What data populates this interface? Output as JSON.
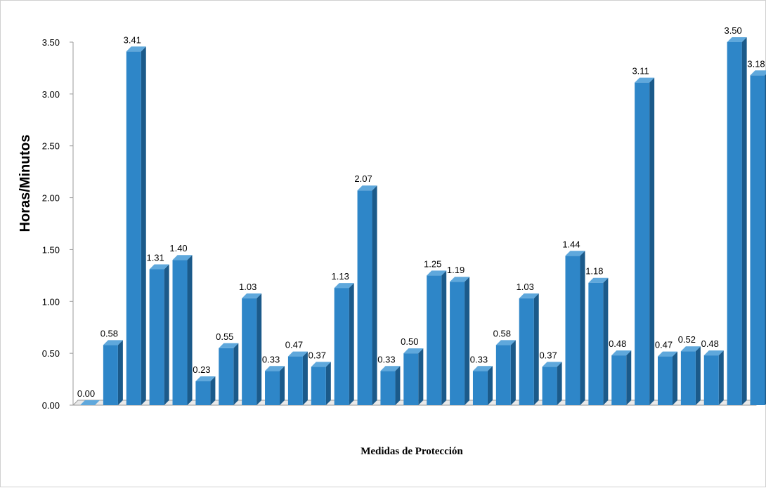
{
  "chart_data": {
    "type": "bar",
    "title": "",
    "xlabel": "Medidas de Protección",
    "ylabel": "Horas/Minutos",
    "ylim": [
      0,
      3.5
    ],
    "yticks": [
      "0.00",
      "0.50",
      "1.00",
      "1.50",
      "2.00",
      "2.50",
      "3.00",
      "3.50"
    ],
    "grid": false,
    "legend": "none",
    "three_d": true,
    "values": [
      0.0,
      0.58,
      3.41,
      1.31,
      1.4,
      0.23,
      0.55,
      1.03,
      0.33,
      0.47,
      0.37,
      1.13,
      2.07,
      0.33,
      0.5,
      1.25,
      1.19,
      0.33,
      0.58,
      1.03,
      0.37,
      1.44,
      1.18,
      0.48,
      3.11,
      0.47,
      0.52,
      0.48,
      3.5,
      3.18
    ],
    "data_labels": [
      "0.00",
      "0.58",
      "3.41",
      "1.31",
      "1.40",
      "0.23",
      "0.55",
      "1.03",
      "0.33",
      "0.47",
      "0.37",
      "1.13",
      "2.07",
      "0.33",
      "0.50",
      "1.25",
      "1.19",
      "0.33",
      "0.58",
      "1.03",
      "0.37",
      "1.44",
      "1.18",
      "0.48",
      "3.11",
      "0.47",
      "0.52",
      "0.48",
      "3.50",
      "3.18"
    ],
    "colors": {
      "bar_front": "#2E86C8",
      "bar_top": "#5FA8DC",
      "bar_side": "#1B5A8A",
      "axis": "#9a9a9a",
      "floor": "#e9e9e9"
    }
  }
}
